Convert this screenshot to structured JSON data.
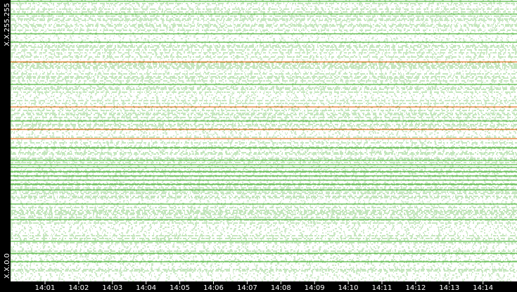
{
  "y_axis": {
    "top_label": "X.X.255.255",
    "bottom_label": "X.X.0.0"
  },
  "x_axis": {
    "ticks": [
      "14:01",
      "14:02",
      "14:03",
      "14:04",
      "14:05",
      "14:06",
      "14:07",
      "14:08",
      "14:09",
      "14:10",
      "14:11",
      "14:12",
      "14:13",
      "14:14"
    ]
  }
}
